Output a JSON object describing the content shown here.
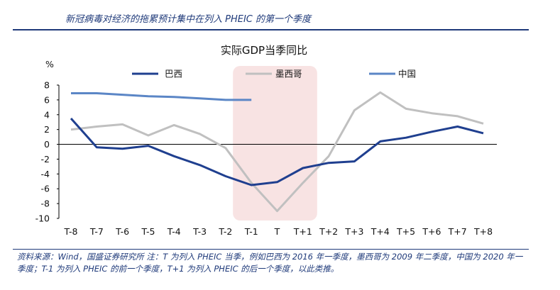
{
  "header": {
    "title": "新冠病毒对经济的拖累预计集中在列入 PHEIC 的第一个季度"
  },
  "footnote": {
    "text": "资料来源：Wind，国盛证券研究所 注：T 为列入 PHEIC 当季，例如巴西为 2016 年一季度，墨西哥为 2009 年二季度，中国为 2020 年一季度；T-1 为列入 PHEIC 的前一个季度，T+1 为列入 PHEIC 的后一个季度，以此类推。"
  },
  "chart_data": {
    "type": "line",
    "title": "实际GDP当季同比",
    "ylabel": "%",
    "xlabel": "",
    "ylim": [
      -10,
      8
    ],
    "yticks": [
      8,
      6,
      4,
      2,
      0,
      -2,
      -4,
      -6,
      -8,
      -10
    ],
    "categories": [
      "T-8",
      "T-7",
      "T-6",
      "T-5",
      "T-4",
      "T-3",
      "T-2",
      "T-1",
      "T",
      "T+1",
      "T+2",
      "T+3",
      "T+4",
      "T+5",
      "T+6",
      "T+7",
      "T+8"
    ],
    "highlight": {
      "from": "T-1",
      "to": "T+1",
      "color": "#f8e3e3"
    },
    "legend_position": "top",
    "series": [
      {
        "name": "巴西",
        "color": "#1f3f8f",
        "values": [
          3.5,
          -0.4,
          -0.6,
          -0.2,
          -1.6,
          -2.8,
          -4.3,
          -5.5,
          -5.1,
          -3.2,
          -2.5,
          -2.3,
          0.4,
          0.9,
          1.7,
          2.4,
          1.5
        ]
      },
      {
        "name": "墨西哥",
        "color": "#c0c0c0",
        "values": [
          2.0,
          2.4,
          2.7,
          1.2,
          2.6,
          1.4,
          -0.5,
          -5.2,
          -9.0,
          -5.2,
          -1.6,
          4.6,
          7.0,
          4.8,
          4.2,
          3.8,
          2.8
        ]
      },
      {
        "name": "中国",
        "color": "#5b86c6",
        "values": [
          6.9,
          6.9,
          6.7,
          6.5,
          6.4,
          6.2,
          6.0,
          6.0,
          null,
          null,
          null,
          null,
          null,
          null,
          null,
          null,
          null
        ]
      }
    ]
  }
}
